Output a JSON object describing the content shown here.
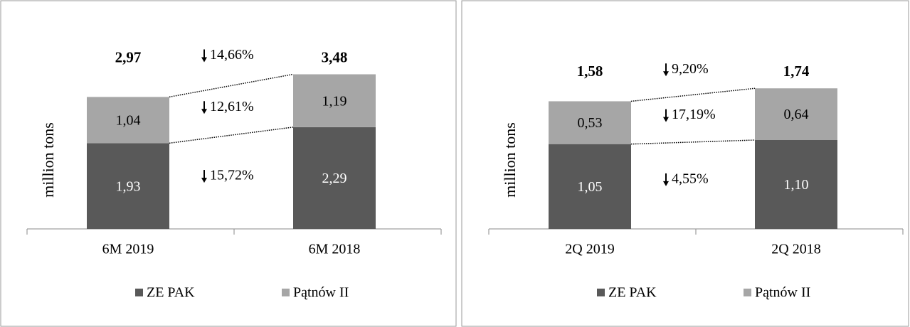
{
  "chart_data": [
    {
      "type": "bar",
      "stacked": true,
      "ylabel": "million tons",
      "categories": [
        "6M 2019",
        "6M 2018"
      ],
      "series": [
        {
          "name": "ZE PAK",
          "color": "#595959",
          "values": [
            1.93,
            2.29
          ],
          "value_labels": [
            "1,93",
            "2,29"
          ]
        },
        {
          "name": "Pątnów II",
          "color": "#a6a6a6",
          "values": [
            1.04,
            1.19
          ],
          "value_labels": [
            "1,04",
            "1,19"
          ]
        }
      ],
      "totals": [
        2.97,
        3.48
      ],
      "total_labels": [
        "2,97",
        "3,48"
      ],
      "annotations": [
        "14,66%",
        "12,61%",
        "15,72%"
      ],
      "ylim": [
        0,
        4
      ],
      "legend": "bottom"
    },
    {
      "type": "bar",
      "stacked": true,
      "ylabel": "million tons",
      "categories": [
        "2Q 2019",
        "2Q 2018"
      ],
      "series": [
        {
          "name": "ZE PAK",
          "color": "#595959",
          "values": [
            1.05,
            1.1
          ],
          "value_labels": [
            "1,05",
            "1,10"
          ]
        },
        {
          "name": "Pątnów II",
          "color": "#a6a6a6",
          "values": [
            0.53,
            0.64
          ],
          "value_labels": [
            "0,53",
            "0,64"
          ]
        }
      ],
      "totals": [
        1.58,
        1.74
      ],
      "total_labels": [
        "1,58",
        "1,74"
      ],
      "annotations": [
        "9,20%",
        "17,19%",
        "4,55%"
      ],
      "ylim": [
        0,
        2.2
      ],
      "legend": "bottom"
    }
  ]
}
